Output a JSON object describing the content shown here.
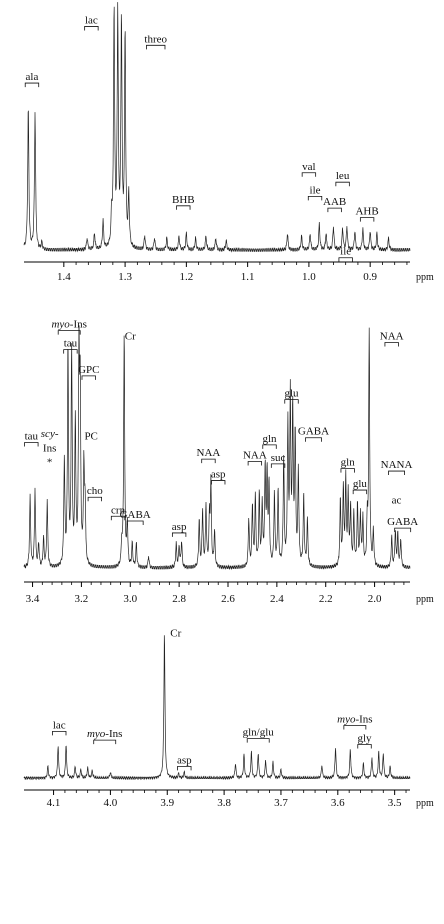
{
  "chart_data": [
    {
      "type": "line",
      "panel": "top",
      "xunit": "ppm",
      "xlim": [
        1.465,
        0.835
      ],
      "ticks": [
        "1.4",
        "1.3",
        "1.2",
        "1.1",
        "1.0",
        "0.9"
      ],
      "tick_values": [
        1.4,
        1.3,
        1.2,
        1.1,
        1.0,
        0.9
      ],
      "peaks": [
        {
          "ppm": 1.468,
          "h": 0.03
        },
        {
          "ppm": 1.458,
          "h": 0.6
        },
        {
          "ppm": 1.447,
          "h": 0.58
        },
        {
          "ppm": 1.436,
          "h": 0.03
        },
        {
          "ppm": 1.362,
          "h": 0.05
        },
        {
          "ppm": 1.35,
          "h": 0.07
        },
        {
          "ppm": 1.336,
          "h": 0.12
        },
        {
          "ppm": 1.322,
          "h": 0.13
        },
        {
          "ppm": 1.318,
          "h": 1.0
        },
        {
          "ppm": 1.312,
          "h": 0.98
        },
        {
          "ppm": 1.306,
          "h": 0.95
        },
        {
          "ppm": 1.3,
          "h": 0.9
        },
        {
          "ppm": 1.294,
          "h": 0.22
        },
        {
          "ppm": 1.268,
          "h": 0.06
        },
        {
          "ppm": 1.252,
          "h": 0.05
        },
        {
          "ppm": 1.232,
          "h": 0.05
        },
        {
          "ppm": 1.212,
          "h": 0.06
        },
        {
          "ppm": 1.2,
          "h": 0.07
        },
        {
          "ppm": 1.185,
          "h": 0.05
        },
        {
          "ppm": 1.168,
          "h": 0.06
        },
        {
          "ppm": 1.152,
          "h": 0.05
        },
        {
          "ppm": 1.135,
          "h": 0.04
        },
        {
          "ppm": 1.035,
          "h": 0.07
        },
        {
          "ppm": 1.012,
          "h": 0.06
        },
        {
          "ppm": 0.998,
          "h": 0.07
        },
        {
          "ppm": 0.983,
          "h": 0.11
        },
        {
          "ppm": 0.972,
          "h": 0.07
        },
        {
          "ppm": 0.96,
          "h": 0.1
        },
        {
          "ppm": 0.945,
          "h": 0.09
        },
        {
          "ppm": 0.938,
          "h": 0.1
        },
        {
          "ppm": 0.925,
          "h": 0.08
        },
        {
          "ppm": 0.912,
          "h": 0.09
        },
        {
          "ppm": 0.9,
          "h": 0.08
        },
        {
          "ppm": 0.889,
          "h": 0.07
        },
        {
          "ppm": 0.87,
          "h": 0.05
        }
      ],
      "annotations": [
        {
          "text": "ala",
          "ppm": 1.452,
          "level": 0.72
        },
        {
          "text": "lac",
          "ppm": 1.355,
          "level": 0.96
        },
        {
          "text": "threo",
          "ppm": 1.25,
          "level": 0.88
        },
        {
          "text": "BHB",
          "ppm": 1.205,
          "level": 0.2
        },
        {
          "text": "val",
          "ppm": 1.0,
          "level": 0.34
        },
        {
          "text": "leu",
          "ppm": 0.945,
          "level": 0.3
        },
        {
          "text": "ile",
          "ppm": 0.99,
          "level": 0.24
        },
        {
          "text": "AAB",
          "ppm": 0.958,
          "level": 0.19
        },
        {
          "text": "AHB",
          "ppm": 0.905,
          "level": 0.15
        },
        {
          "text": "ile",
          "ppm": 0.94,
          "level": -0.02
        }
      ]
    },
    {
      "type": "line",
      "panel": "middle",
      "xunit": "ppm",
      "xlim": [
        3.435,
        1.855
      ],
      "ticks": [
        "3.4",
        "3.2",
        "3.0",
        "2.8",
        "2.6",
        "2.4",
        "2.2",
        "2.0"
      ],
      "tick_values": [
        3.4,
        3.2,
        3.0,
        2.8,
        2.6,
        2.4,
        2.2,
        2.0
      ],
      "peaks": [
        {
          "ppm": 3.41,
          "h": 0.3
        },
        {
          "ppm": 3.39,
          "h": 0.33
        },
        {
          "ppm": 3.375,
          "h": 0.1
        },
        {
          "ppm": 3.355,
          "h": 0.12
        },
        {
          "ppm": 3.34,
          "h": 0.28
        },
        {
          "ppm": 3.27,
          "h": 0.45
        },
        {
          "ppm": 3.255,
          "h": 0.92
        },
        {
          "ppm": 3.24,
          "h": 0.9
        },
        {
          "ppm": 3.225,
          "h": 0.6
        },
        {
          "ppm": 3.21,
          "h": 0.88
        },
        {
          "ppm": 3.205,
          "h": 0.7
        },
        {
          "ppm": 3.19,
          "h": 0.4
        },
        {
          "ppm": 3.185,
          "h": 0.25
        },
        {
          "ppm": 3.035,
          "h": 0.09
        },
        {
          "ppm": 3.025,
          "h": 0.98
        },
        {
          "ppm": 3.012,
          "h": 0.18
        },
        {
          "ppm": 2.992,
          "h": 0.1
        },
        {
          "ppm": 2.975,
          "h": 0.1
        },
        {
          "ppm": 2.925,
          "h": 0.05
        },
        {
          "ppm": 2.812,
          "h": 0.1
        },
        {
          "ppm": 2.8,
          "h": 0.09
        },
        {
          "ppm": 2.79,
          "h": 0.11
        },
        {
          "ppm": 2.718,
          "h": 0.2
        },
        {
          "ppm": 2.704,
          "h": 0.24
        },
        {
          "ppm": 2.69,
          "h": 0.26
        },
        {
          "ppm": 2.676,
          "h": 0.2
        },
        {
          "ppm": 2.67,
          "h": 0.35
        },
        {
          "ppm": 2.655,
          "h": 0.15
        },
        {
          "ppm": 2.515,
          "h": 0.2
        },
        {
          "ppm": 2.5,
          "h": 0.26
        },
        {
          "ppm": 2.488,
          "h": 0.29
        },
        {
          "ppm": 2.472,
          "h": 0.3
        },
        {
          "ppm": 2.46,
          "h": 0.26
        },
        {
          "ppm": 2.448,
          "h": 0.4
        },
        {
          "ppm": 2.44,
          "h": 0.37
        },
        {
          "ppm": 2.432,
          "h": 0.33
        },
        {
          "ppm": 2.41,
          "h": 0.3
        },
        {
          "ppm": 2.395,
          "h": 0.32
        },
        {
          "ppm": 2.372,
          "h": 0.45
        },
        {
          "ppm": 2.355,
          "h": 0.58
        },
        {
          "ppm": 2.345,
          "h": 0.7
        },
        {
          "ppm": 2.335,
          "h": 0.65
        },
        {
          "ppm": 2.325,
          "h": 0.55
        },
        {
          "ppm": 2.312,
          "h": 0.4
        },
        {
          "ppm": 2.29,
          "h": 0.3
        },
        {
          "ppm": 2.275,
          "h": 0.2
        },
        {
          "ppm": 2.14,
          "h": 0.28
        },
        {
          "ppm": 2.128,
          "h": 0.33
        },
        {
          "ppm": 2.118,
          "h": 0.36
        },
        {
          "ppm": 2.108,
          "h": 0.3
        },
        {
          "ppm": 2.098,
          "h": 0.25
        },
        {
          "ppm": 2.085,
          "h": 0.22
        },
        {
          "ppm": 2.07,
          "h": 0.26
        },
        {
          "ppm": 2.058,
          "h": 0.22
        },
        {
          "ppm": 2.048,
          "h": 0.2
        },
        {
          "ppm": 2.03,
          "h": 0.18
        },
        {
          "ppm": 2.022,
          "h": 0.98
        },
        {
          "ppm": 2.005,
          "h": 0.15
        },
        {
          "ppm": 1.93,
          "h": 0.13
        },
        {
          "ppm": 1.915,
          "h": 0.15
        },
        {
          "ppm": 1.905,
          "h": 0.14
        },
        {
          "ppm": 1.893,
          "h": 0.12
        }
      ],
      "annotations": [
        {
          "text": "myo-Ins",
          "ppm": 3.25,
          "level": 1.01
        },
        {
          "text": "tau",
          "ppm": 3.245,
          "level": 0.93
        },
        {
          "text": "GPC",
          "ppm": 3.17,
          "level": 0.82
        },
        {
          "text": "Cr",
          "ppm": 3.0,
          "level": 0.96
        },
        {
          "text": "NAA",
          "ppm": 1.93,
          "level": 0.96
        },
        {
          "text": "tau",
          "ppm": 3.405,
          "level": 0.54
        },
        {
          "text": "PC",
          "ppm": 3.16,
          "level": 0.54
        },
        {
          "text": "scy-",
          "ppm": 3.33,
          "level": 0.55
        },
        {
          "text": "Ins",
          "ppm": 3.33,
          "level": 0.49
        },
        {
          "text": "*",
          "ppm": 3.33,
          "level": 0.43
        },
        {
          "text": "cho",
          "ppm": 3.145,
          "level": 0.31
        },
        {
          "text": "crn",
          "ppm": 3.05,
          "level": 0.23
        },
        {
          "text": "GABA",
          "ppm": 2.98,
          "level": 0.21
        },
        {
          "text": "asp",
          "ppm": 2.8,
          "level": 0.16
        },
        {
          "text": "asp",
          "ppm": 2.64,
          "level": 0.38
        },
        {
          "text": "NAA",
          "ppm": 2.68,
          "level": 0.47
        },
        {
          "text": "NAA",
          "ppm": 2.49,
          "level": 0.46
        },
        {
          "text": "gln",
          "ppm": 2.43,
          "level": 0.53
        },
        {
          "text": "suc",
          "ppm": 2.395,
          "level": 0.45
        },
        {
          "text": "glu",
          "ppm": 2.34,
          "level": 0.72
        },
        {
          "text": "GABA",
          "ppm": 2.25,
          "level": 0.56
        },
        {
          "text": "gln",
          "ppm": 2.11,
          "level": 0.43
        },
        {
          "text": "glu",
          "ppm": 2.06,
          "level": 0.34
        },
        {
          "text": "NANA",
          "ppm": 1.91,
          "level": 0.42
        },
        {
          "text": "ac",
          "ppm": 1.91,
          "level": 0.27
        },
        {
          "text": "GABA",
          "ppm": 1.885,
          "level": 0.18
        }
      ]
    },
    {
      "type": "line",
      "panel": "bottom",
      "xunit": "ppm",
      "xlim": [
        4.152,
        3.473
      ],
      "ticks": [
        "4.1",
        "4.0",
        "3.9",
        "3.8",
        "3.7",
        "3.6",
        "3.5"
      ],
      "tick_values": [
        4.1,
        4.0,
        3.9,
        3.8,
        3.7,
        3.6,
        3.5
      ],
      "peaks": [
        {
          "ppm": 4.11,
          "h": 0.08
        },
        {
          "ppm": 4.092,
          "h": 0.22
        },
        {
          "ppm": 4.078,
          "h": 0.23
        },
        {
          "ppm": 4.062,
          "h": 0.08
        },
        {
          "ppm": 4.052,
          "h": 0.06
        },
        {
          "ppm": 4.04,
          "h": 0.07
        },
        {
          "ppm": 4.032,
          "h": 0.05
        },
        {
          "ppm": 4.0,
          "h": 0.04
        },
        {
          "ppm": 3.905,
          "h": 1.0
        },
        {
          "ppm": 3.88,
          "h": 0.03
        },
        {
          "ppm": 3.87,
          "h": 0.04
        },
        {
          "ppm": 3.78,
          "h": 0.1
        },
        {
          "ppm": 3.765,
          "h": 0.16
        },
        {
          "ppm": 3.752,
          "h": 0.18
        },
        {
          "ppm": 3.74,
          "h": 0.17
        },
        {
          "ppm": 3.727,
          "h": 0.12
        },
        {
          "ppm": 3.714,
          "h": 0.11
        },
        {
          "ppm": 3.7,
          "h": 0.06
        },
        {
          "ppm": 3.628,
          "h": 0.09
        },
        {
          "ppm": 3.604,
          "h": 0.21
        },
        {
          "ppm": 3.578,
          "h": 0.2
        },
        {
          "ppm": 3.555,
          "h": 0.1
        },
        {
          "ppm": 3.54,
          "h": 0.14
        },
        {
          "ppm": 3.528,
          "h": 0.18
        },
        {
          "ppm": 3.52,
          "h": 0.17
        },
        {
          "ppm": 3.508,
          "h": 0.08
        }
      ],
      "annotations": [
        {
          "text": "Cr",
          "ppm": 3.885,
          "level": 0.97
        },
        {
          "text": "lac",
          "ppm": 4.09,
          "level": 0.34
        },
        {
          "text": "myo-Ins",
          "ppm": 4.01,
          "level": 0.28
        },
        {
          "text": "asp",
          "ppm": 3.87,
          "level": 0.1
        },
        {
          "text": "gln/glu",
          "ppm": 3.74,
          "level": 0.29
        },
        {
          "text": "myo-Ins",
          "ppm": 3.57,
          "level": 0.38
        },
        {
          "text": "gly",
          "ppm": 3.553,
          "level": 0.25
        }
      ]
    }
  ]
}
